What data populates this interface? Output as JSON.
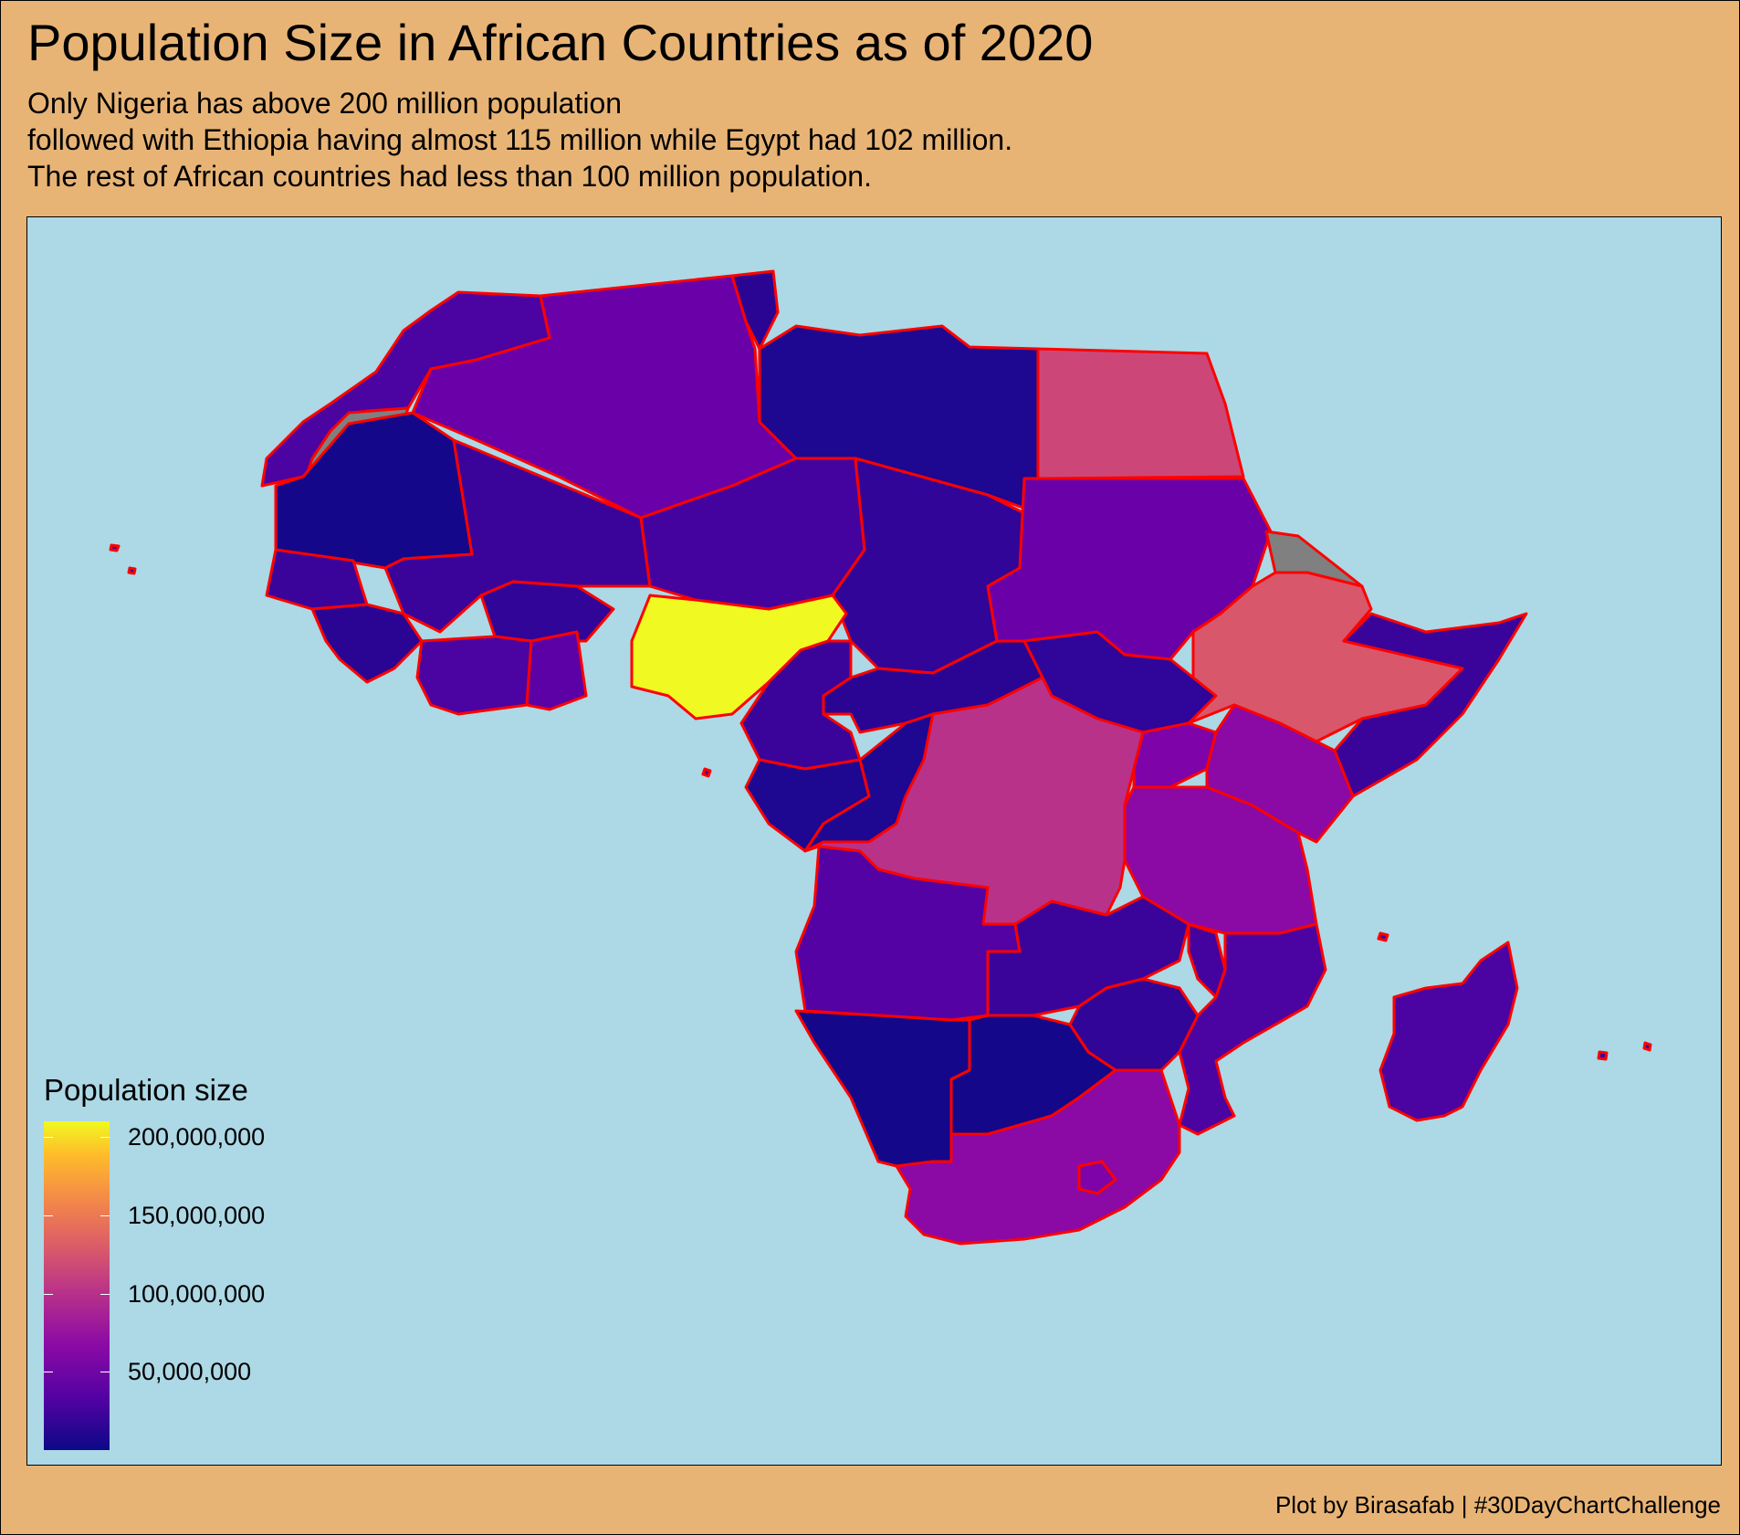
{
  "title": "Population Size in African Countries as of 2020",
  "subtitle": [
    "Only Nigeria has above 200 million population",
    "followed with Ethiopia having almost 115 million while Egypt had 102 million.",
    "The rest of African countries had less than 100 million population."
  ],
  "caption": "Plot by Birasafab | #30DayChartChallenge",
  "colors": {
    "background": "#e8b476",
    "ocean": "#add8e6",
    "border": "#ff0000",
    "no_data": "#808080"
  },
  "chart_data": {
    "type": "choropleth",
    "legend": {
      "title": "Population size",
      "min": 0,
      "max": 210000000,
      "ticks": [
        {
          "value": 50000000,
          "label": "50,000,000"
        },
        {
          "value": 100000000,
          "label": "100,000,000"
        },
        {
          "value": 150000000,
          "label": "150,000,000"
        },
        {
          "value": 200000000,
          "label": "200,000,000"
        }
      ],
      "placement": "bottom-left",
      "palette": "plasma"
    }
  }
}
